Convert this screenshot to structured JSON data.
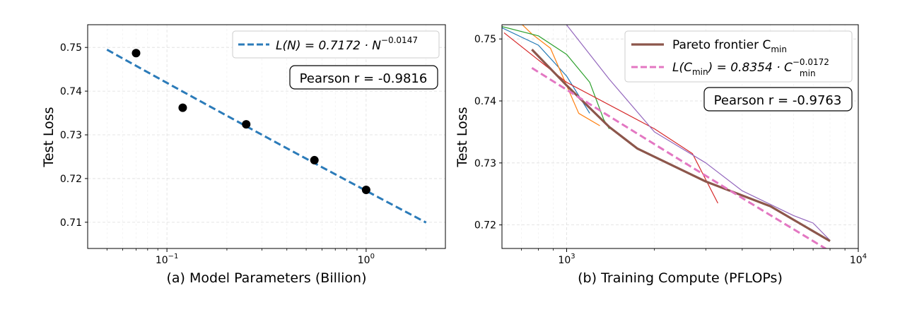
{
  "chart_data": [
    {
      "type": "scatter",
      "xlabel": "(a) Model Parameters (Billion)",
      "ylabel": "Test Loss",
      "xscale": "log",
      "xlim": [
        0.04,
        2.5
      ],
      "ylim": [
        0.704,
        0.7552
      ],
      "yticks": [
        "0.71",
        "0.72",
        "0.73",
        "0.74",
        "0.75"
      ],
      "xticks": [
        {
          "base": "10",
          "exp": "−1",
          "value": 0.1
        },
        {
          "base": "10",
          "exp": "0",
          "value": 1
        }
      ],
      "grid": true,
      "points": [
        {
          "x": 0.07,
          "y": 0.7487
        },
        {
          "x": 0.12,
          "y": 0.7362
        },
        {
          "x": 0.25,
          "y": 0.7324
        },
        {
          "x": 0.55,
          "y": 0.7242
        },
        {
          "x": 1.0,
          "y": 0.7174
        }
      ],
      "fit": {
        "a": 0.7172,
        "b": -0.0147,
        "x_range": [
          0.05,
          2.0
        ],
        "color": "#2b7bb9",
        "legend_prefix": "L(N) = 0.7172 · N",
        "legend_exp": "−0.0147"
      },
      "annotation": "Pearson r = -0.9816",
      "legend_position": "top-right"
    },
    {
      "type": "line",
      "xlabel": "(b) Training Compute (PFLOPs)",
      "ylabel": "Test Loss",
      "xscale": "log",
      "xlim": [
        600,
        10000
      ],
      "ylim": [
        0.7162,
        0.7523
      ],
      "yticks": [
        "0.72",
        "0.73",
        "0.74",
        "0.75"
      ],
      "xticks": [
        {
          "base": "10",
          "exp": "3",
          "value": 1000
        },
        {
          "base": "10",
          "exp": "4",
          "value": 10000
        }
      ],
      "grid": true,
      "series": [
        {
          "color": "#1f77b4",
          "points": [
            [
              600,
              0.7518
            ],
            [
              800,
              0.749
            ],
            [
              1000,
              0.744
            ],
            [
              1200,
              0.738
            ]
          ]
        },
        {
          "color": "#ff7f0e",
          "points": [
            [
              680,
              0.753
            ],
            [
              760,
              0.7508
            ],
            [
              880,
              0.7485
            ],
            [
              1100,
              0.738
            ],
            [
              1300,
              0.736
            ]
          ]
        },
        {
          "color": "#2ca02c",
          "points": [
            [
              600,
              0.752
            ],
            [
              800,
              0.7505
            ],
            [
              1000,
              0.7475
            ],
            [
              1200,
              0.743
            ],
            [
              1340,
              0.737
            ],
            [
              1400,
              0.7355
            ]
          ]
        },
        {
          "color": "#d62728",
          "points": [
            [
              610,
              0.751
            ],
            [
              1000,
              0.743
            ],
            [
              2000,
              0.7355
            ],
            [
              2700,
              0.7315
            ],
            [
              3300,
              0.7235
            ]
          ]
        },
        {
          "color": "#9467bd",
          "points": [
            [
              900,
              0.755
            ],
            [
              1400,
              0.7435
            ],
            [
              2000,
              0.735
            ],
            [
              3000,
              0.73
            ],
            [
              4000,
              0.7255
            ],
            [
              6000,
              0.7215
            ],
            [
              7000,
              0.7203
            ],
            [
              8000,
              0.7175
            ]
          ]
        },
        {
          "name": "Pareto frontier",
          "color": "#8c564b",
          "width": 3.2,
          "points": [
            [
              760,
              0.7483
            ],
            [
              1000,
              0.7425
            ],
            [
              1400,
              0.7358
            ],
            [
              1750,
              0.7323
            ],
            [
              3000,
              0.727
            ],
            [
              5000,
              0.723
            ],
            [
              8000,
              0.7174
            ]
          ]
        }
      ],
      "fit": {
        "a": 0.8354,
        "b": -0.0172,
        "x_range": [
          760,
          8000
        ],
        "color": "#e377c2"
      },
      "legend": [
        {
          "label": "Pareto frontier C",
          "sub": "min",
          "kind": "solid",
          "color": "#8c564b"
        },
        {
          "label": "L(C",
          "sub": "min",
          "mid": ") = 0.8354 · C",
          "sub2": "min",
          "exp": "−0.0172",
          "kind": "dashed",
          "color": "#e377c2"
        }
      ],
      "annotation": "Pearson r = -0.9763",
      "legend_position": "top-right"
    }
  ]
}
